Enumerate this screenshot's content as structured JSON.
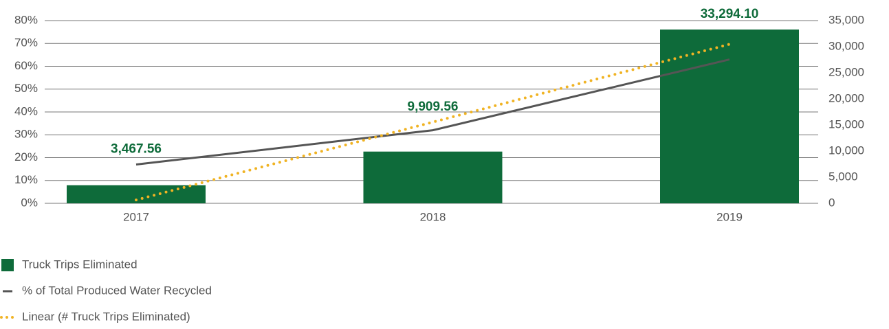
{
  "chart_data": {
    "type": "bar-line",
    "categories": [
      "2017",
      "2018",
      "2019"
    ],
    "series": [
      {
        "name": "Truck Trips Eliminated",
        "type": "bar",
        "axis": "y2",
        "color": "#0e6b3a",
        "values": [
          3467.56,
          9909.56,
          33294.1
        ],
        "value_labels": [
          "3,467.56",
          "9,909.56",
          "33,294.10"
        ]
      },
      {
        "name": "% of Total Produced Water Recycled",
        "type": "line",
        "axis": "y",
        "color": "#555555",
        "values": [
          17,
          32,
          63
        ]
      },
      {
        "name": "Linear (# Truck Trips Eliminated)",
        "type": "trend",
        "axis": "y2",
        "color": "#f0b323",
        "values": [
          644,
          15557,
          30470
        ]
      }
    ],
    "ylim": [
      0,
      80
    ],
    "yticks": [
      {
        "value": 0,
        "label": "0%"
      },
      {
        "value": 10,
        "label": "10%"
      },
      {
        "value": 20,
        "label": "20%"
      },
      {
        "value": 30,
        "label": "30%"
      },
      {
        "value": 40,
        "label": "40%"
      },
      {
        "value": 50,
        "label": "50%"
      },
      {
        "value": 60,
        "label": "60%"
      },
      {
        "value": 70,
        "label": "70%"
      },
      {
        "value": 80,
        "label": "80%"
      }
    ],
    "y2lim": [
      0,
      35000
    ],
    "y2ticks": [
      0,
      {
        "value": 5000,
        "label": "5,000"
      },
      {
        "value": 10000,
        "label": "10,000"
      },
      {
        "value": 15000,
        "label": "15,000"
      },
      {
        "value": 20000,
        "label": "20,000"
      },
      {
        "value": 25000,
        "label": "25,000"
      },
      {
        "value": 30000,
        "label": "30,000"
      },
      {
        "value": 35000,
        "label": "35,000"
      }
    ],
    "grid": true,
    "legend": "bottom-left"
  }
}
